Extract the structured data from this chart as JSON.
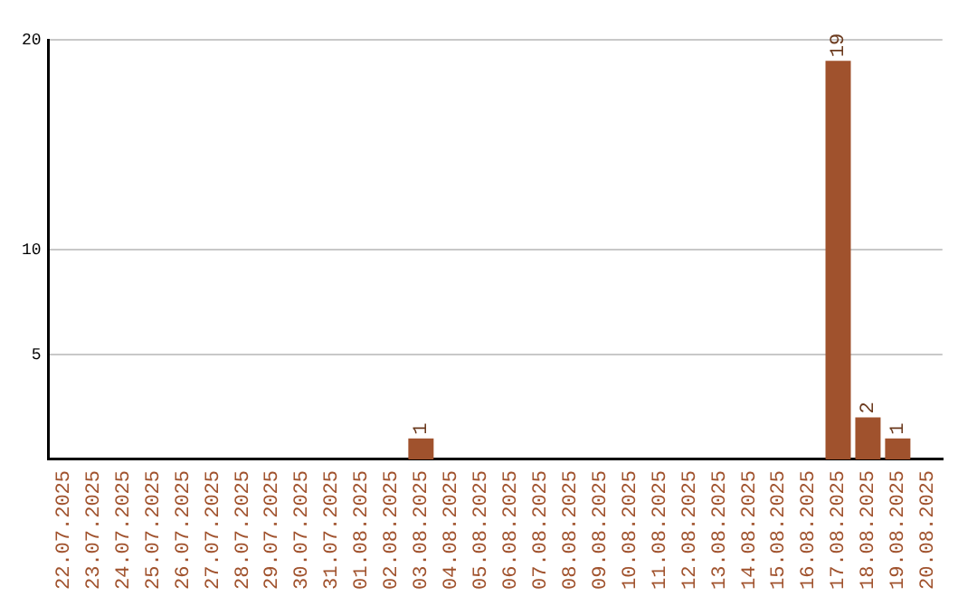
{
  "chart_data": {
    "type": "bar",
    "categories": [
      "22.07.2025",
      "23.07.2025",
      "24.07.2025",
      "25.07.2025",
      "26.07.2025",
      "27.07.2025",
      "28.07.2025",
      "29.07.2025",
      "30.07.2025",
      "31.07.2025",
      "01.08.2025",
      "02.08.2025",
      "03.08.2025",
      "04.08.2025",
      "05.08.2025",
      "06.08.2025",
      "07.08.2025",
      "08.08.2025",
      "09.08.2025",
      "10.08.2025",
      "11.08.2025",
      "12.08.2025",
      "13.08.2025",
      "14.08.2025",
      "15.08.2025",
      "16.08.2025",
      "17.08.2025",
      "18.08.2025",
      "19.08.2025",
      "20.08.2025"
    ],
    "values": [
      0,
      0,
      0,
      0,
      0,
      0,
      0,
      0,
      0,
      0,
      0,
      0,
      1,
      0,
      0,
      0,
      0,
      0,
      0,
      0,
      0,
      0,
      0,
      0,
      0,
      0,
      19,
      2,
      1,
      0
    ],
    "value_labels": [
      null,
      null,
      null,
      null,
      null,
      null,
      null,
      null,
      null,
      null,
      null,
      null,
      "1",
      null,
      null,
      null,
      null,
      null,
      null,
      null,
      null,
      null,
      null,
      null,
      null,
      null,
      "19",
      "2",
      "1",
      null
    ],
    "color": "#a0522d",
    "ylim": [
      0,
      20
    ],
    "yticks": [
      5,
      10,
      20
    ],
    "grid": "y",
    "legend": false
  }
}
